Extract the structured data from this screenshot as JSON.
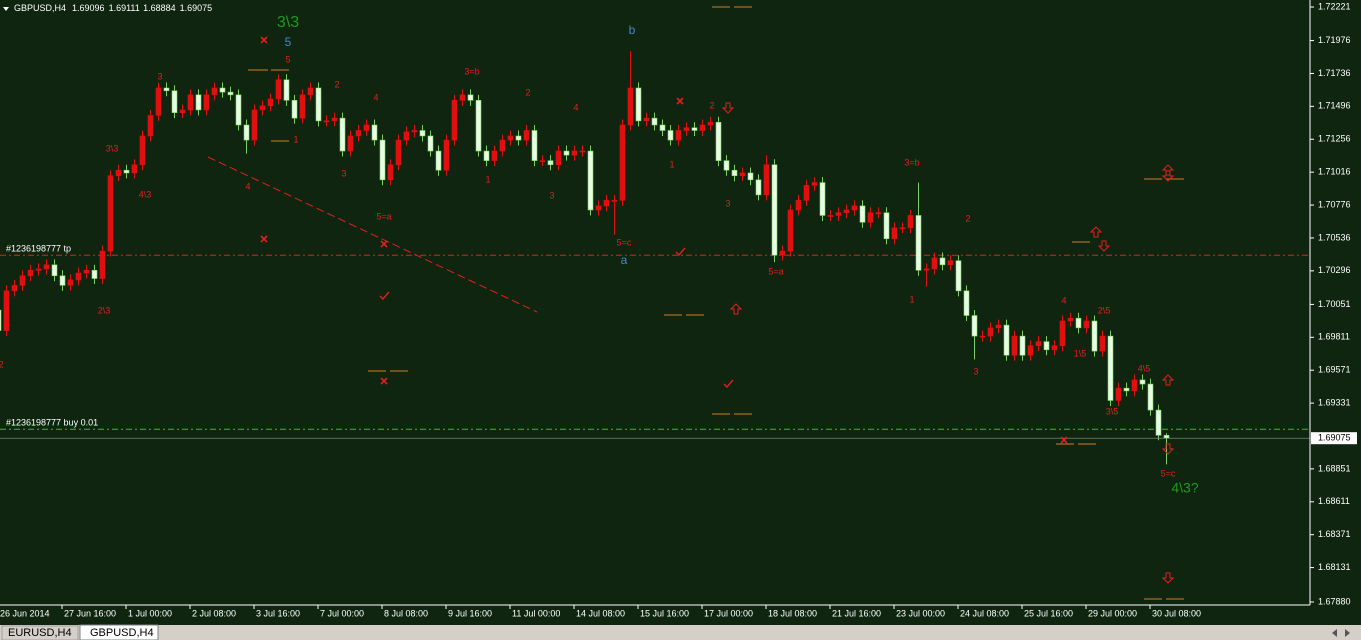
{
  "chart_data": {
    "type": "candlestick",
    "symbol": "GBPUSD,H4",
    "categories": [
      "26 Jun 2014",
      null,
      null,
      null,
      null,
      null,
      null,
      null,
      "27 Jun 16:00",
      null,
      null,
      null,
      null,
      null,
      null,
      null,
      "1 Jul 00:00",
      null,
      null,
      null,
      null,
      null,
      null,
      null,
      "2 Jul 08:00",
      null,
      null,
      null,
      null,
      null,
      null,
      null,
      "3 Jul 16:00",
      null,
      null,
      null,
      null,
      null,
      null,
      null,
      "7 Jul 00:00",
      null,
      null,
      null,
      null,
      null,
      null,
      null,
      "8 Jul 08:00",
      null,
      null,
      null,
      null,
      null,
      null,
      null,
      "9 Jul 16:00",
      null,
      null,
      null,
      null,
      null,
      null,
      null,
      "11 Jul 00:00",
      null,
      null,
      null,
      null,
      null,
      null,
      null,
      "14 Jul 08:00",
      null,
      null,
      null,
      null,
      null,
      null,
      null,
      "15 Jul 16:00",
      null,
      null,
      null,
      null,
      null,
      null,
      null,
      "17 Jul 00:00",
      null,
      null,
      null,
      null,
      null,
      null,
      null,
      "18 Jul 08:00",
      null,
      null,
      null,
      null,
      null,
      null,
      null,
      "21 Jul 16:00",
      null,
      null,
      null,
      null,
      null,
      null,
      null,
      "23 Jul 00:00",
      null,
      null,
      null,
      null,
      null,
      null,
      null,
      "24 Jul 08:00",
      null,
      null,
      null,
      null,
      null,
      null,
      null,
      "25 Jul 16:00",
      null,
      null,
      null,
      null,
      null,
      null,
      null,
      "29 Jul 00:00",
      null,
      null,
      null,
      null,
      null,
      null,
      null,
      "30 Jul 08:00",
      null,
      null
    ],
    "open": [
      1.7001,
      1.6986,
      1.7015,
      1.7019,
      1.7026,
      1.703,
      1.7031,
      1.7034,
      1.7026,
      1.7019,
      1.7023,
      1.7028,
      1.703,
      1.7024,
      1.7044,
      1.7099,
      1.7103,
      1.7101,
      1.7107,
      1.7128,
      1.7143,
      1.7163,
      1.7161,
      1.7145,
      1.7147,
      1.7158,
      1.7147,
      1.7158,
      1.7163,
      1.716,
      1.7158,
      1.7136,
      1.7125,
      1.7147,
      1.715,
      1.7155,
      1.7169,
      1.7154,
      1.7141,
      1.7158,
      1.7163,
      1.7139,
      1.7139,
      1.7141,
      1.7117,
      1.7128,
      1.7132,
      1.7136,
      1.7125,
      1.7096,
      1.7107,
      1.7125,
      1.7131,
      1.7132,
      1.7128,
      1.7117,
      1.7103,
      1.7125,
      1.7154,
      1.7158,
      1.7154,
      1.7117,
      1.711,
      1.7117,
      1.7125,
      1.7128,
      1.7125,
      1.7132,
      1.711,
      1.711,
      1.7107,
      1.7117,
      1.7114,
      1.7117,
      1.7117,
      1.7074,
      1.7077,
      1.7081,
      1.7081,
      1.7136,
      1.7163,
      1.7139,
      1.7141,
      1.7136,
      1.7132,
      1.7125,
      1.7132,
      1.7134,
      1.7132,
      1.7136,
      1.7138,
      1.711,
      1.7103,
      1.7099,
      1.7101,
      1.7096,
      1.7085,
      1.7107,
      1.7041,
      1.7044,
      1.7074,
      1.7081,
      1.7092,
      1.7094,
      1.707,
      1.707,
      1.7072,
      1.7074,
      1.7077,
      1.7065,
      1.7072,
      1.7072,
      1.7053,
      1.7061,
      1.7061,
      1.707,
      1.703,
      1.7031,
      1.7039,
      1.7034,
      1.7037,
      1.7015,
      1.6997,
      1.6982,
      1.6982,
      1.6988,
      1.699,
      1.6968,
      1.6982,
      1.6968,
      1.6975,
      1.6978,
      1.6972,
      1.6975,
      1.6993,
      1.6995,
      1.6988,
      1.6993,
      1.6971,
      1.6982,
      1.6935,
      1.6944,
      1.6942,
      1.695,
      1.6947,
      1.6928,
      1.69096
    ],
    "high": [
      1.7005,
      1.7019,
      1.7023,
      1.703,
      1.7034,
      1.7035,
      1.7038,
      1.7038,
      1.703,
      1.7027,
      1.7032,
      1.7034,
      1.7034,
      1.7048,
      1.7103,
      1.7107,
      1.7107,
      1.7111,
      1.7132,
      1.7147,
      1.7167,
      1.7167,
      1.7165,
      1.7151,
      1.7162,
      1.7162,
      1.7162,
      1.7167,
      1.7167,
      1.7164,
      1.7162,
      1.714,
      1.7151,
      1.7154,
      1.7159,
      1.7173,
      1.7173,
      1.7158,
      1.7162,
      1.7167,
      1.7167,
      1.7143,
      1.7145,
      1.7145,
      1.7132,
      1.7136,
      1.714,
      1.714,
      1.7129,
      1.7111,
      1.7129,
      1.7135,
      1.7136,
      1.7136,
      1.7132,
      1.7121,
      1.7129,
      1.7158,
      1.7162,
      1.7162,
      1.7158,
      1.7121,
      1.7121,
      1.7129,
      1.7132,
      1.7132,
      1.7136,
      1.7136,
      1.7114,
      1.7114,
      1.7121,
      1.7121,
      1.7121,
      1.7121,
      1.7121,
      1.7081,
      1.7085,
      1.7085,
      1.714,
      1.719,
      1.7167,
      1.7145,
      1.7145,
      1.714,
      1.7136,
      1.7136,
      1.7138,
      1.7138,
      1.714,
      1.7142,
      1.7142,
      1.7114,
      1.7107,
      1.7105,
      1.7105,
      1.71,
      1.7114,
      1.7111,
      1.7048,
      1.7078,
      1.7085,
      1.7096,
      1.7098,
      1.7098,
      1.7074,
      1.7076,
      1.7078,
      1.7081,
      1.7081,
      1.7076,
      1.7076,
      1.7076,
      1.7065,
      1.7065,
      1.7074,
      1.7094,
      1.7035,
      1.7043,
      1.7043,
      1.7041,
      1.7041,
      1.7019,
      1.7001,
      1.6986,
      1.6992,
      1.6994,
      1.6994,
      1.6986,
      1.6986,
      1.6979,
      1.6982,
      1.6982,
      1.6979,
      1.6997,
      1.6999,
      1.6999,
      1.6997,
      1.6997,
      1.6986,
      1.6986,
      1.6948,
      1.6948,
      1.6954,
      1.6954,
      1.6951,
      1.6932,
      1.69111
    ],
    "low": [
      1.6982,
      1.6982,
      1.7011,
      1.7015,
      1.7022,
      1.7026,
      1.7027,
      1.7022,
      1.7015,
      1.7015,
      1.7019,
      1.7024,
      1.702,
      1.702,
      1.704,
      1.7095,
      1.7097,
      1.7097,
      1.7103,
      1.7124,
      1.7139,
      1.7157,
      1.7141,
      1.7141,
      1.7143,
      1.7143,
      1.7143,
      1.7154,
      1.7156,
      1.7154,
      1.7132,
      1.7115,
      1.7121,
      1.7143,
      1.7146,
      1.7151,
      1.715,
      1.7137,
      1.7137,
      1.7154,
      1.7135,
      1.7135,
      1.7135,
      1.7113,
      1.7113,
      1.7124,
      1.7128,
      1.7121,
      1.7092,
      1.7092,
      1.7103,
      1.7121,
      1.7127,
      1.7124,
      1.7113,
      1.7099,
      1.7099,
      1.7121,
      1.715,
      1.715,
      1.7113,
      1.7106,
      1.7106,
      1.7113,
      1.7121,
      1.7121,
      1.7121,
      1.7106,
      1.7106,
      1.7103,
      1.7103,
      1.711,
      1.711,
      1.7113,
      1.707,
      1.707,
      1.7073,
      1.7056,
      1.7077,
      1.7132,
      1.7135,
      1.7135,
      1.7132,
      1.7128,
      1.7121,
      1.7121,
      1.7128,
      1.7128,
      1.7128,
      1.7132,
      1.7106,
      1.7099,
      1.7095,
      1.7095,
      1.7092,
      1.7081,
      1.7081,
      1.7036,
      1.7037,
      1.704,
      1.707,
      1.7077,
      1.7088,
      1.7066,
      1.7066,
      1.7066,
      1.7068,
      1.707,
      1.7061,
      1.7061,
      1.7068,
      1.7049,
      1.7049,
      1.7057,
      1.7057,
      1.7026,
      1.7018,
      1.7027,
      1.703,
      1.703,
      1.7011,
      1.6993,
      1.6965,
      1.6978,
      1.6978,
      1.6984,
      1.6964,
      1.6964,
      1.6964,
      1.6964,
      1.6971,
      1.6968,
      1.6968,
      1.6971,
      1.6989,
      1.6984,
      1.6984,
      1.6967,
      1.6967,
      1.6931,
      1.6931,
      1.6938,
      1.6938,
      1.6943,
      1.6924,
      1.6906,
      1.68884
    ],
    "close": [
      1.6986,
      1.7015,
      1.7019,
      1.7026,
      1.703,
      1.7031,
      1.7034,
      1.7026,
      1.7019,
      1.7023,
      1.7028,
      1.703,
      1.7024,
      1.7044,
      1.7099,
      1.7103,
      1.7101,
      1.7107,
      1.7128,
      1.7143,
      1.7163,
      1.7161,
      1.7145,
      1.7147,
      1.7158,
      1.7147,
      1.7158,
      1.7163,
      1.716,
      1.7158,
      1.7136,
      1.7125,
      1.7147,
      1.715,
      1.7155,
      1.7169,
      1.7154,
      1.7141,
      1.7158,
      1.7163,
      1.7139,
      1.7139,
      1.7141,
      1.7117,
      1.7128,
      1.7132,
      1.7136,
      1.7125,
      1.7096,
      1.7107,
      1.7125,
      1.7131,
      1.7132,
      1.7128,
      1.7117,
      1.7103,
      1.7125,
      1.7154,
      1.7158,
      1.7154,
      1.7117,
      1.711,
      1.7117,
      1.7125,
      1.7128,
      1.7125,
      1.7132,
      1.711,
      1.711,
      1.7107,
      1.7117,
      1.7114,
      1.7117,
      1.7117,
      1.7074,
      1.7077,
      1.7081,
      1.7081,
      1.7136,
      1.7163,
      1.7139,
      1.7141,
      1.7136,
      1.7132,
      1.7125,
      1.7132,
      1.7134,
      1.7132,
      1.7136,
      1.7138,
      1.711,
      1.7103,
      1.7099,
      1.7101,
      1.7096,
      1.7085,
      1.7107,
      1.7041,
      1.7044,
      1.7074,
      1.7081,
      1.7092,
      1.7094,
      1.707,
      1.707,
      1.7072,
      1.7074,
      1.7077,
      1.7065,
      1.7072,
      1.7072,
      1.7053,
      1.7061,
      1.7061,
      1.707,
      1.703,
      1.7031,
      1.7039,
      1.7034,
      1.7037,
      1.7015,
      1.6997,
      1.6982,
      1.6982,
      1.6988,
      1.699,
      1.6968,
      1.6982,
      1.6968,
      1.6975,
      1.6978,
      1.6972,
      1.6975,
      1.6993,
      1.6995,
      1.6988,
      1.6993,
      1.6971,
      1.6982,
      1.6935,
      1.6944,
      1.6942,
      1.695,
      1.6947,
      1.6928,
      1.69096,
      1.69075
    ],
    "bull_color": "#e01010",
    "bear_color": "#eaffea",
    "bear_wick": "#7cd05c",
    "ylim": [
      1.67858,
      1.72272
    ],
    "yticks": [
      1.72221,
      1.71976,
      1.71736,
      1.71496,
      1.71256,
      1.71016,
      1.70776,
      1.70536,
      1.70296,
      1.70051,
      1.69811,
      1.69571,
      1.69331,
      1.68851,
      1.68611,
      1.68371,
      1.68131,
      {
        "value": 1.6788,
        "label": "1.67880"
      }
    ],
    "grid": false,
    "orders": [
      {
        "label": "#1236198777 tp",
        "price": 1.7041,
        "color": "#e02020"
      },
      {
        "label": "#1236198777 buy 0.01",
        "price": 1.6914,
        "color": "#30c030"
      }
    ],
    "annotations": [
      {
        "text": "3\\3",
        "color": "#1f9a1f"
      },
      {
        "text": "5",
        "color": "#4a86c8"
      },
      {
        "text": "b",
        "color": "#4a86c8"
      },
      {
        "text": "a",
        "color": "#4a86c8"
      },
      {
        "text": "4\\3?",
        "color": "#1f9a1f"
      },
      {
        "text": "3",
        "color": "#e02020"
      },
      {
        "text": "3\\3",
        "color": "#e02020"
      },
      {
        "text": "4\\3",
        "color": "#e02020"
      },
      {
        "text": "2\\3",
        "color": "#e02020"
      },
      {
        "text": "2",
        "color": "#e02020"
      },
      {
        "text": "5",
        "color": "#e02020"
      },
      {
        "text": "1",
        "color": "#e02020"
      },
      {
        "text": "4",
        "color": "#e02020"
      },
      {
        "text": "2",
        "color": "#e02020"
      },
      {
        "text": "3",
        "color": "#e02020"
      },
      {
        "text": "4",
        "color": "#e02020"
      },
      {
        "text": "5=a",
        "color": "#e02020"
      },
      {
        "text": "3=b",
        "color": "#e02020"
      },
      {
        "text": "1",
        "color": "#e02020"
      },
      {
        "text": "2",
        "color": "#e02020"
      },
      {
        "text": "3",
        "color": "#e02020"
      },
      {
        "text": "4",
        "color": "#e02020"
      },
      {
        "text": "5=c",
        "color": "#e02020"
      },
      {
        "text": "1",
        "color": "#e02020"
      },
      {
        "text": "2",
        "color": "#e02020"
      },
      {
        "text": "3",
        "color": "#e02020"
      },
      {
        "text": "5=a",
        "color": "#e02020"
      },
      {
        "text": "3=b",
        "color": "#e02020"
      },
      {
        "text": "2",
        "color": "#e02020"
      },
      {
        "text": "1",
        "color": "#e02020"
      },
      {
        "text": "3",
        "color": "#e02020"
      },
      {
        "text": "4",
        "color": "#e02020"
      },
      {
        "text": "2\\5",
        "color": "#e02020"
      },
      {
        "text": "1\\5",
        "color": "#e02020"
      },
      {
        "text": "4\\5",
        "color": "#e02020"
      },
      {
        "text": "3\\5",
        "color": "#e02020"
      },
      {
        "text": "5=c",
        "color": "#e02020"
      }
    ]
  },
  "tabs": [
    "EURUSD,H4",
    "GBPUSD,H4"
  ]
}
